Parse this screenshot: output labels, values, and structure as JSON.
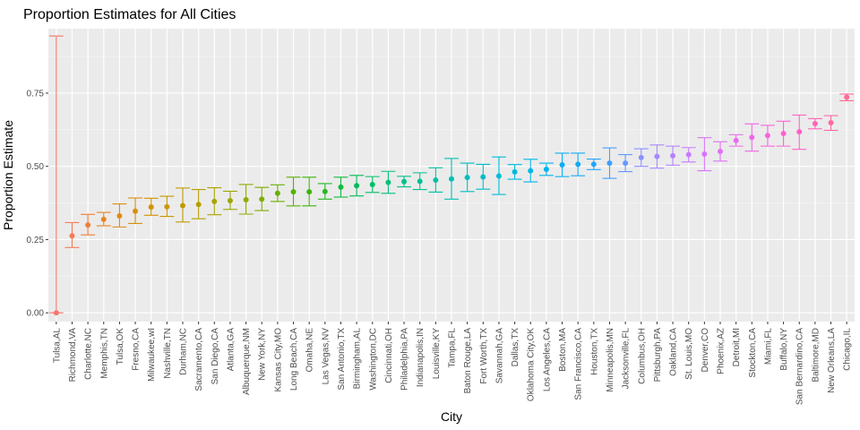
{
  "chart_data": {
    "type": "scatter",
    "title": "Proportion Estimates for All Cities",
    "xlabel": "City",
    "ylabel": "Proportion Estimate",
    "ylim": [
      -0.03,
      0.97
    ],
    "yticks": [
      0.0,
      0.25,
      0.5,
      0.75
    ],
    "ytick_labels": [
      "0.00",
      "0.25",
      "0.50",
      "0.75"
    ],
    "grid": true,
    "legend": "none",
    "error_bars": true,
    "colors": [
      "#f8766d",
      "#e7851e",
      "#d09400",
      "#b2a100",
      "#89ac00",
      "#45b500",
      "#00bc51",
      "#00c087",
      "#00c0b2",
      "#00bcd6",
      "#00b3f2",
      "#29a3ff",
      "#9c8dff",
      "#d277ff",
      "#f166e8",
      "#ff61c7",
      "#ff6c92"
    ],
    "points": [
      {
        "city": "Tulsa,AL",
        "estimate": 0.0,
        "low": 0.0,
        "high": 0.945
      },
      {
        "city": "Richmond,VA",
        "estimate": 0.263,
        "low": 0.223,
        "high": 0.308
      },
      {
        "city": "Charlotte,NC",
        "estimate": 0.3,
        "low": 0.266,
        "high": 0.336
      },
      {
        "city": "Memphis,TN",
        "estimate": 0.319,
        "low": 0.297,
        "high": 0.343
      },
      {
        "city": "Tulsa,OK",
        "estimate": 0.331,
        "low": 0.293,
        "high": 0.372
      },
      {
        "city": "Fresno,CA",
        "estimate": 0.347,
        "low": 0.305,
        "high": 0.392
      },
      {
        "city": "Milwaukee,wI",
        "estimate": 0.361,
        "low": 0.333,
        "high": 0.391
      },
      {
        "city": "Nashville,TN",
        "estimate": 0.362,
        "low": 0.329,
        "high": 0.398
      },
      {
        "city": "Durham,NC",
        "estimate": 0.366,
        "low": 0.31,
        "high": 0.426
      },
      {
        "city": "Sacramento,CA",
        "estimate": 0.37,
        "low": 0.321,
        "high": 0.421
      },
      {
        "city": "San Diego,CA",
        "estimate": 0.38,
        "low": 0.335,
        "high": 0.427
      },
      {
        "city": "Atlanta,GA",
        "estimate": 0.383,
        "low": 0.353,
        "high": 0.415
      },
      {
        "city": "Albuquerque,NM",
        "estimate": 0.386,
        "low": 0.337,
        "high": 0.438
      },
      {
        "city": "New York,NY",
        "estimate": 0.388,
        "low": 0.349,
        "high": 0.428
      },
      {
        "city": "Kansas City,MO",
        "estimate": 0.408,
        "low": 0.38,
        "high": 0.437
      },
      {
        "city": "Long Beach,CA",
        "estimate": 0.413,
        "low": 0.365,
        "high": 0.463
      },
      {
        "city": "Omaha,NE",
        "estimate": 0.413,
        "low": 0.365,
        "high": 0.463
      },
      {
        "city": "Las Vegas,NV",
        "estimate": 0.414,
        "low": 0.388,
        "high": 0.441
      },
      {
        "city": "San Antonio,TX",
        "estimate": 0.429,
        "low": 0.395,
        "high": 0.463
      },
      {
        "city": "Birmingham,AL",
        "estimate": 0.434,
        "low": 0.399,
        "high": 0.469
      },
      {
        "city": "Washington,DC",
        "estimate": 0.438,
        "low": 0.411,
        "high": 0.465
      },
      {
        "city": "Cincinnati,OH",
        "estimate": 0.445,
        "low": 0.408,
        "high": 0.483
      },
      {
        "city": "Philadelphia,PA",
        "estimate": 0.448,
        "low": 0.43,
        "high": 0.466
      },
      {
        "city": "Indianapolis,IN",
        "estimate": 0.449,
        "low": 0.421,
        "high": 0.478
      },
      {
        "city": "Louisville,KY",
        "estimate": 0.453,
        "low": 0.412,
        "high": 0.495
      },
      {
        "city": "Tampa,FL",
        "estimate": 0.457,
        "low": 0.388,
        "high": 0.527
      },
      {
        "city": "Baton Rouge,LA",
        "estimate": 0.462,
        "low": 0.414,
        "high": 0.511
      },
      {
        "city": "Fort Worth,TX",
        "estimate": 0.464,
        "low": 0.422,
        "high": 0.507
      },
      {
        "city": "Savannah,GA",
        "estimate": 0.467,
        "low": 0.404,
        "high": 0.532
      },
      {
        "city": "Dallas,TX",
        "estimate": 0.481,
        "low": 0.456,
        "high": 0.506
      },
      {
        "city": "Oklahoma City,OK",
        "estimate": 0.485,
        "low": 0.447,
        "high": 0.524
      },
      {
        "city": "Los Angeles,CA",
        "estimate": 0.49,
        "low": 0.469,
        "high": 0.511
      },
      {
        "city": "Boston,MA",
        "estimate": 0.505,
        "low": 0.465,
        "high": 0.545
      },
      {
        "city": "San Francisco,CA",
        "estimate": 0.507,
        "low": 0.468,
        "high": 0.545
      },
      {
        "city": "Houston,TX",
        "estimate": 0.507,
        "low": 0.489,
        "high": 0.525
      },
      {
        "city": "Minneapolis,MN",
        "estimate": 0.511,
        "low": 0.459,
        "high": 0.563
      },
      {
        "city": "Jacksonville,FL",
        "estimate": 0.511,
        "low": 0.482,
        "high": 0.54
      },
      {
        "city": "Columbus,OH",
        "estimate": 0.53,
        "low": 0.5,
        "high": 0.56
      },
      {
        "city": "Pittsburgh,PA",
        "estimate": 0.534,
        "low": 0.494,
        "high": 0.573
      },
      {
        "city": "Oakland,CA",
        "estimate": 0.536,
        "low": 0.504,
        "high": 0.569
      },
      {
        "city": "St. Louis,MO",
        "estimate": 0.54,
        "low": 0.515,
        "high": 0.564
      },
      {
        "city": "Denver,CO",
        "estimate": 0.542,
        "low": 0.485,
        "high": 0.598
      },
      {
        "city": "Phoenix,AZ",
        "estimate": 0.551,
        "low": 0.518,
        "high": 0.584
      },
      {
        "city": "Detroit,MI",
        "estimate": 0.588,
        "low": 0.569,
        "high": 0.608
      },
      {
        "city": "Stockton,CA",
        "estimate": 0.599,
        "low": 0.552,
        "high": 0.645
      },
      {
        "city": "Miami,FL",
        "estimate": 0.605,
        "low": 0.569,
        "high": 0.64
      },
      {
        "city": "Buffalo,NY",
        "estimate": 0.612,
        "low": 0.569,
        "high": 0.654
      },
      {
        "city": "San Bernardino,CA",
        "estimate": 0.618,
        "low": 0.558,
        "high": 0.675
      },
      {
        "city": "Baltimore,MD",
        "estimate": 0.646,
        "low": 0.628,
        "high": 0.663
      },
      {
        "city": "New Orleans,LA",
        "estimate": 0.649,
        "low": 0.623,
        "high": 0.673
      },
      {
        "city": "Chicago,IL",
        "estimate": 0.736,
        "low": 0.724,
        "high": 0.747
      }
    ]
  }
}
